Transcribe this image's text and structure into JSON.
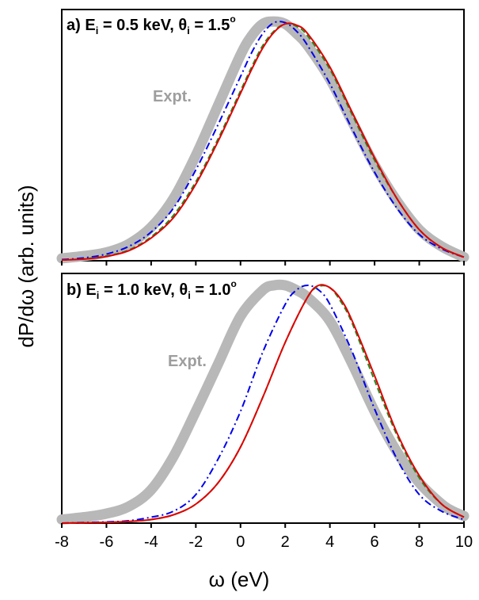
{
  "chart_data": {
    "type": "line",
    "shared_x_axis": {
      "label": "ω (eV)",
      "range": [
        -8,
        10
      ],
      "ticks": [
        -8,
        -6,
        -4,
        -2,
        0,
        2,
        4,
        6,
        8,
        10
      ],
      "tick_labels": [
        "-8",
        "-6",
        "-4",
        "-2",
        "0",
        "2",
        "4",
        "6",
        "8",
        "10"
      ]
    },
    "y_axis": {
      "label": "dP/dω (arb. units)",
      "tick_labels_shown": false
    },
    "panels": [
      {
        "id": "a",
        "label": {
          "prefix": "a) E",
          "sub1": "i",
          "mid": " = 0.5 keV, θ",
          "sub2": "i",
          "tail": " = 1.5",
          "sup": "o"
        },
        "annotation": "Expt.",
        "ylim": [
          0,
          1.05
        ],
        "series": [
          {
            "style": "expt",
            "color": "#b8b8b8",
            "x": [
              -8,
              -7,
              -6,
              -5,
              -4,
              -3,
              -2,
              -1,
              0,
              0.5,
              1,
              1.5,
              2,
              2.5,
              3,
              4,
              5,
              6,
              7,
              8,
              9,
              10
            ],
            "y": [
              0.01,
              0.02,
              0.035,
              0.07,
              0.14,
              0.26,
              0.44,
              0.65,
              0.86,
              0.94,
              0.99,
              1.0,
              0.99,
              0.95,
              0.9,
              0.76,
              0.58,
              0.4,
              0.25,
              0.13,
              0.06,
              0.015
            ]
          },
          {
            "style": "dash-dot",
            "color": "#0000ee",
            "x": [
              -8,
              -7,
              -6,
              -5,
              -4,
              -3,
              -2,
              -1,
              0,
              0.5,
              1,
              1.5,
              2,
              2.5,
              3,
              4,
              5,
              6,
              7,
              8,
              9,
              10
            ],
            "y": [
              0.005,
              0.012,
              0.028,
              0.06,
              0.12,
              0.22,
              0.38,
              0.57,
              0.77,
              0.87,
              0.95,
              0.995,
              0.995,
              0.96,
              0.9,
              0.74,
              0.55,
              0.37,
              0.22,
              0.11,
              0.05,
              0.015
            ]
          },
          {
            "style": "dashed",
            "color": "#228b22",
            "x": [
              -8,
              -7,
              -6,
              -5,
              -4,
              -3,
              -2,
              -1,
              0,
              0.5,
              1,
              1.5,
              2,
              2.5,
              3,
              4,
              5,
              6,
              7,
              8,
              9,
              10
            ],
            "y": [
              0.003,
              0.008,
              0.02,
              0.045,
              0.1,
              0.19,
              0.33,
              0.51,
              0.71,
              0.81,
              0.9,
              0.96,
              0.99,
              0.98,
              0.94,
              0.8,
              0.61,
              0.42,
              0.26,
              0.13,
              0.055,
              0.015
            ]
          },
          {
            "style": "solid",
            "color": "#e00000",
            "x": [
              -8,
              -7,
              -6,
              -5,
              -4,
              -3,
              -2,
              -1,
              0,
              0.5,
              1,
              1.5,
              2,
              2.5,
              3,
              4,
              5,
              6,
              7,
              8,
              9,
              10
            ],
            "y": [
              0.003,
              0.007,
              0.018,
              0.042,
              0.095,
              0.18,
              0.32,
              0.5,
              0.7,
              0.8,
              0.89,
              0.955,
              0.99,
              0.985,
              0.95,
              0.81,
              0.62,
              0.43,
              0.26,
              0.13,
              0.055,
              0.015
            ]
          }
        ]
      },
      {
        "id": "b",
        "label": {
          "prefix": "b) E",
          "sub1": "i",
          "mid": " = 1.0 keV, θ",
          "sub2": "i",
          "tail": " = 1.0",
          "sup": "o"
        },
        "annotation": "Expt.",
        "ylim": [
          0,
          1.05
        ],
        "series": [
          {
            "style": "expt",
            "color": "#b8b8b8",
            "x": [
              -8,
              -7,
              -6,
              -5,
              -4,
              -3,
              -2,
              -1,
              0,
              1,
              1.5,
              2,
              2.5,
              3,
              4,
              5,
              6,
              7,
              8,
              9,
              9.5,
              10
            ],
            "y": [
              0.015,
              0.025,
              0.04,
              0.07,
              0.14,
              0.28,
              0.47,
              0.67,
              0.87,
              0.98,
              1.0,
              1.0,
              0.98,
              0.95,
              0.85,
              0.67,
              0.47,
              0.3,
              0.17,
              0.08,
              0.05,
              0.03
            ]
          },
          {
            "style": "dash-dot",
            "color": "#0000ee",
            "x": [
              -8,
              -6,
              -5,
              -4,
              -3,
              -2,
              -1,
              0,
              1,
              2,
              2.5,
              3,
              3.5,
              4,
              5,
              6,
              7,
              8,
              9,
              10
            ],
            "y": [
              0.0,
              0.005,
              0.01,
              0.025,
              0.05,
              0.12,
              0.27,
              0.47,
              0.72,
              0.92,
              0.98,
              1.0,
              0.98,
              0.92,
              0.72,
              0.48,
              0.27,
              0.12,
              0.05,
              0.015
            ]
          },
          {
            "style": "dashed",
            "color": "#228b22",
            "x": [
              -8,
              -6,
              -5,
              -4,
              -3,
              -2,
              -1,
              0,
              1,
              2,
              3,
              3.5,
              4,
              4.5,
              5,
              6,
              7,
              8,
              9,
              10
            ],
            "y": [
              0.0,
              0.003,
              0.007,
              0.015,
              0.035,
              0.08,
              0.17,
              0.32,
              0.53,
              0.76,
              0.95,
              0.995,
              0.99,
              0.93,
              0.84,
              0.6,
              0.37,
              0.19,
              0.08,
              0.025
            ]
          },
          {
            "style": "solid",
            "color": "#e00000",
            "x": [
              -8,
              -6,
              -5,
              -4,
              -3,
              -2,
              -1,
              0,
              1,
              2,
              3,
              3.5,
              4,
              4.5,
              5,
              6,
              7,
              8,
              9,
              10
            ],
            "y": [
              0.0,
              0.003,
              0.007,
              0.015,
              0.035,
              0.08,
              0.17,
              0.32,
              0.53,
              0.76,
              0.95,
              1.0,
              0.99,
              0.94,
              0.85,
              0.62,
              0.38,
              0.2,
              0.08,
              0.025
            ]
          }
        ]
      }
    ]
  }
}
